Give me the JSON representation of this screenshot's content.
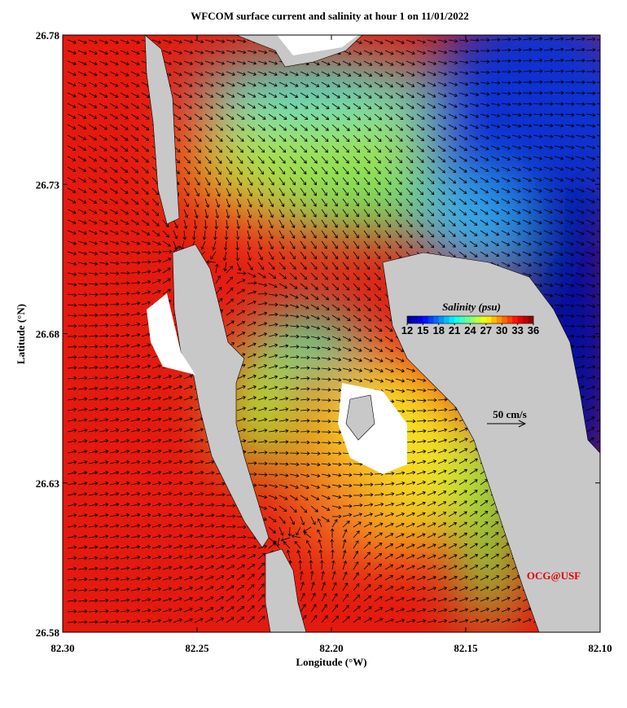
{
  "chart_data": {
    "type": "map",
    "title": "WFCOM surface current and salinity at hour 1 on 11/01/2022",
    "x_label": "Longitude (°W)",
    "y_label": "Latitude (°N)",
    "xlim": [
      82.3,
      82.1
    ],
    "ylim": [
      26.58,
      26.78
    ],
    "xticks": [
      {
        "value": 82.3,
        "label": "82.30"
      },
      {
        "value": 82.25,
        "label": "82.25"
      },
      {
        "value": 82.2,
        "label": "82.20"
      },
      {
        "value": 82.15,
        "label": "82.15"
      },
      {
        "value": 82.1,
        "label": "82.10"
      }
    ],
    "yticks": [
      26.58,
      26.63,
      26.68,
      26.73,
      26.78
    ],
    "colorbar": {
      "title": "Salinity (psu)",
      "lim": [
        12,
        36
      ],
      "ticks": [
        12,
        15,
        18,
        21,
        24,
        27,
        30,
        33,
        36
      ]
    },
    "scale_arrow": "50 cm/s",
    "credit": "OCG@USF"
  }
}
